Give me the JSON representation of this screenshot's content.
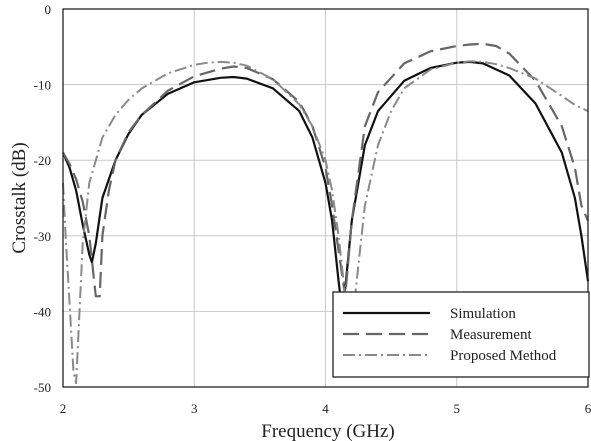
{
  "chart_data": {
    "type": "line",
    "xlabel": "Frequency (GHz)",
    "ylabel": "Crosstalk (dB)",
    "xlim": [
      2,
      6
    ],
    "ylim": [
      -50,
      0
    ],
    "xticks": [
      "2",
      "3",
      "4",
      "5",
      "6"
    ],
    "yticks": [
      "0",
      "-10",
      "-20",
      "-30",
      "-40",
      "-50"
    ],
    "grid": true,
    "legend_position": "bottom-right",
    "series": [
      {
        "name": "Simulation",
        "style": "solid",
        "color": "#111111",
        "x": [
          2.0,
          2.05,
          2.1,
          2.15,
          2.2,
          2.22,
          2.25,
          2.3,
          2.4,
          2.5,
          2.6,
          2.8,
          3.0,
          3.2,
          3.3,
          3.4,
          3.6,
          3.8,
          3.9,
          4.0,
          4.05,
          4.1,
          4.12,
          4.15,
          4.2,
          4.3,
          4.4,
          4.6,
          4.8,
          5.0,
          5.1,
          5.2,
          5.4,
          5.6,
          5.8,
          5.9,
          5.95,
          6.0
        ],
        "y": [
          -19,
          -21,
          -24,
          -28.5,
          -32.5,
          -33.5,
          -31,
          -25,
          -20,
          -16.5,
          -14,
          -11.2,
          -9.7,
          -9.1,
          -9.0,
          -9.2,
          -10.5,
          -13.5,
          -17,
          -23,
          -28,
          -36,
          -39,
          -37,
          -28,
          -18,
          -13.5,
          -9.5,
          -7.8,
          -7.1,
          -7.0,
          -7.2,
          -8.8,
          -12.5,
          -19,
          -25,
          -30,
          -36
        ]
      },
      {
        "name": "Measurement",
        "style": "dashed",
        "color": "#666666",
        "x": [
          2.0,
          2.05,
          2.1,
          2.15,
          2.2,
          2.25,
          2.28,
          2.3,
          2.35,
          2.4,
          2.5,
          2.6,
          2.8,
          3.0,
          3.2,
          3.3,
          3.4,
          3.6,
          3.8,
          3.9,
          4.0,
          4.05,
          4.1,
          4.15,
          4.2,
          4.3,
          4.4,
          4.6,
          4.8,
          5.0,
          5.1,
          5.2,
          5.3,
          5.4,
          5.6,
          5.8,
          5.9,
          5.95,
          6.0
        ],
        "y": [
          -19,
          -20.5,
          -22.5,
          -25.5,
          -30,
          -38,
          -38,
          -30,
          -24,
          -20,
          -16.3,
          -14,
          -10.8,
          -8.9,
          -7.9,
          -7.6,
          -7.8,
          -9.3,
          -12.3,
          -15.5,
          -21,
          -26,
          -32,
          -38,
          -28,
          -15.5,
          -11,
          -7.2,
          -5.6,
          -4.9,
          -4.7,
          -4.6,
          -4.9,
          -5.9,
          -9.5,
          -15.5,
          -21,
          -26,
          -28
        ]
      },
      {
        "name": "Proposed Method",
        "style": "dash-dot",
        "color": "#8a8a8a",
        "x": [
          2.0,
          2.02,
          2.05,
          2.08,
          2.1,
          2.12,
          2.15,
          2.2,
          2.3,
          2.4,
          2.5,
          2.6,
          2.8,
          3.0,
          3.1,
          3.2,
          3.3,
          3.4,
          3.6,
          3.8,
          3.9,
          4.0,
          4.05,
          4.1,
          4.15,
          4.2,
          4.25,
          4.3,
          4.4,
          4.5,
          4.6,
          4.8,
          5.0,
          5.1,
          5.2,
          5.3,
          5.4,
          5.6,
          5.8,
          5.9,
          6.0
        ],
        "y": [
          -23,
          -30,
          -39,
          -48,
          -49.5,
          -42,
          -31,
          -23,
          -17,
          -14,
          -12,
          -10.5,
          -8.5,
          -7.4,
          -7.1,
          -7.0,
          -7.1,
          -7.5,
          -9.3,
          -12.6,
          -15.5,
          -20,
          -24,
          -30,
          -38,
          -42,
          -34,
          -26,
          -18,
          -13.5,
          -10.5,
          -8.0,
          -7.1,
          -6.9,
          -7.0,
          -7.3,
          -7.8,
          -9.2,
          -11.5,
          -12.7,
          -13.5
        ]
      }
    ]
  }
}
